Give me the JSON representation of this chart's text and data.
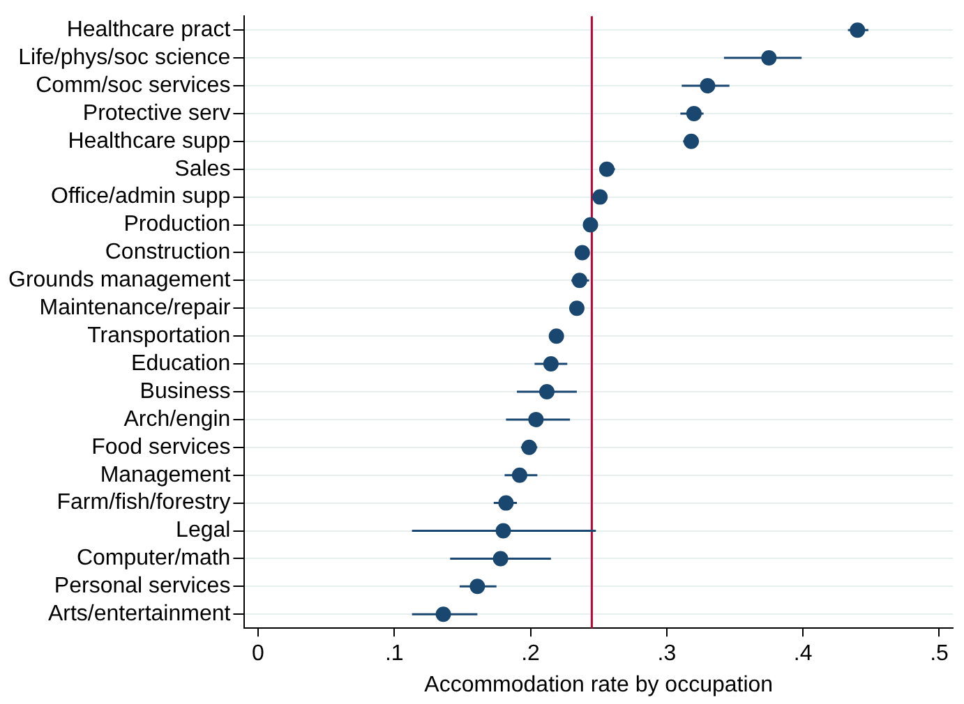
{
  "chart_data": {
    "type": "scatter",
    "orientation": "horizontal",
    "xlabel": "Accommodation rate by occupation",
    "categories": [
      "Healthcare pract",
      "Life/phys/soc science",
      "Comm/soc services",
      "Protective serv",
      "Healthcare supp",
      "Sales",
      "Office/admin supp",
      "Production",
      "Construction",
      "Grounds management",
      "Maintenance/repair",
      "Transportation",
      "Education",
      "Business",
      "Arch/engin",
      "Food services",
      "Management",
      "Farm/fish/forestry",
      "Legal",
      "Computer/math",
      "Personal services",
      "Arts/entertainment"
    ],
    "values": [
      0.44,
      0.375,
      0.33,
      0.32,
      0.318,
      0.256,
      0.251,
      0.244,
      0.238,
      0.236,
      0.234,
      0.219,
      0.215,
      0.212,
      0.204,
      0.199,
      0.192,
      0.182,
      0.18,
      0.178,
      0.161,
      0.136
    ],
    "errors": [
      [
        0.433,
        0.448
      ],
      [
        0.342,
        0.399
      ],
      [
        0.311,
        0.346
      ],
      [
        0.31,
        0.327
      ],
      [
        0.312,
        0.323
      ],
      [
        0.251,
        0.262
      ],
      [
        0.245,
        0.256
      ],
      null,
      null,
      [
        0.23,
        0.243
      ],
      [
        0.23,
        0.238
      ],
      null,
      [
        0.203,
        0.227
      ],
      [
        0.19,
        0.234
      ],
      [
        0.182,
        0.229
      ],
      [
        0.193,
        0.205
      ],
      [
        0.181,
        0.205
      ],
      [
        0.173,
        0.19
      ],
      [
        0.113,
        0.248
      ],
      [
        0.141,
        0.215
      ],
      [
        0.148,
        0.175
      ],
      [
        0.113,
        0.161
      ]
    ],
    "color": "#1a476f",
    "marker": "circle",
    "xlim": [
      -0.01,
      0.51
    ],
    "xticks": [
      0,
      {
        "value": 0.1,
        "label": ".1"
      },
      {
        "value": 0.2,
        "label": ".2"
      },
      {
        "value": 0.3,
        "label": ".3"
      },
      {
        "value": 0.4,
        "label": ".4"
      },
      {
        "value": 0.5,
        "label": ".5"
      }
    ],
    "ref_lines": [
      {
        "axis": "x",
        "value": 0.245,
        "label": null,
        "color": "#c10534"
      }
    ],
    "grid": "y",
    "legend": false
  }
}
